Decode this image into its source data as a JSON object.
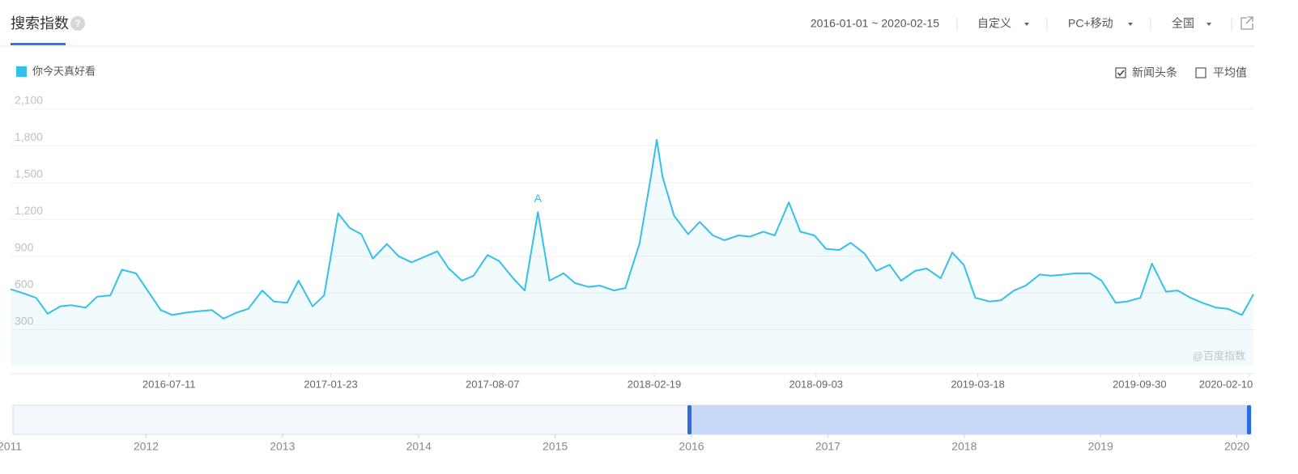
{
  "header": {
    "title": "搜索指数",
    "help": "?",
    "date_range": "2016-01-01 ~ 2020-02-15",
    "dropdowns": [
      "自定义",
      "PC+移动",
      "全国"
    ]
  },
  "options": [
    {
      "label": "新闻头条",
      "checked": true
    },
    {
      "label": "平均值",
      "checked": false
    }
  ],
  "watermark": "@百度指数",
  "navigator": {
    "years": [
      "2011",
      "2012",
      "2013",
      "2014",
      "2015",
      "2016",
      "2017",
      "2018",
      "2019",
      "2020"
    ]
  },
  "chart_data": {
    "type": "area",
    "series": [
      {
        "name": "你今天真好看",
        "color": "#35c0e8",
        "values": [
          630,
          600,
          560,
          430,
          490,
          500,
          480,
          570,
          580,
          790,
          760,
          620,
          460,
          420,
          440,
          450,
          460,
          390,
          440,
          470,
          620,
          530,
          520,
          700,
          490,
          580,
          1250,
          1130,
          1080,
          880,
          1000,
          900,
          850,
          890,
          940,
          800,
          700,
          740,
          910,
          860,
          720,
          620,
          1260,
          700,
          760,
          680,
          650,
          660,
          620,
          640,
          1000,
          1550,
          1850,
          1550,
          1230,
          1080,
          1180,
          1070,
          1030,
          1070,
          1060,
          1100,
          1070,
          1340,
          1100,
          1070,
          960,
          950,
          1010,
          920,
          780,
          830,
          700,
          780,
          800,
          720,
          930,
          830,
          560,
          530,
          540,
          620,
          660,
          750,
          740,
          750,
          760,
          760,
          700,
          520,
          530,
          560,
          840,
          610,
          620,
          560,
          520,
          480,
          470,
          420,
          590
        ]
      }
    ],
    "x": [
      "2016-01-01",
      "2016-01-15",
      "2016-02-01",
      "2016-02-15",
      "2016-03-01",
      "2016-03-15",
      "2016-04-01",
      "2016-04-15",
      "2016-05-01",
      "2016-05-15",
      "2016-06-01",
      "2016-06-15",
      "2016-07-01",
      "2016-07-15",
      "2016-08-01",
      "2016-08-15",
      "2016-09-01",
      "2016-09-15",
      "2016-10-01",
      "2016-10-15",
      "2016-11-01",
      "2016-11-15",
      "2016-12-01",
      "2016-12-15",
      "2017-01-01",
      "2017-01-15",
      "2017-02-01",
      "2017-02-15",
      "2017-03-01",
      "2017-03-15",
      "2017-04-01",
      "2017-04-15",
      "2017-05-01",
      "2017-05-15",
      "2017-06-01",
      "2017-06-15",
      "2017-07-01",
      "2017-07-15",
      "2017-08-01",
      "2017-08-15",
      "2017-09-01",
      "2017-09-15",
      "2017-10-01",
      "2017-10-15",
      "2017-11-01",
      "2017-11-15",
      "2017-12-01",
      "2017-12-15",
      "2018-01-01",
      "2018-01-15",
      "2018-02-01",
      "2018-02-15",
      "2018-02-22",
      "2018-03-01",
      "2018-03-15",
      "2018-04-01",
      "2018-04-15",
      "2018-05-01",
      "2018-05-15",
      "2018-06-01",
      "2018-06-15",
      "2018-07-01",
      "2018-07-15",
      "2018-08-01",
      "2018-08-15",
      "2018-09-01",
      "2018-09-15",
      "2018-10-01",
      "2018-10-15",
      "2018-11-01",
      "2018-11-15",
      "2018-12-01",
      "2018-12-15",
      "2019-01-01",
      "2019-01-15",
      "2019-02-01",
      "2019-02-15",
      "2019-03-01",
      "2019-03-15",
      "2019-04-01",
      "2019-04-15",
      "2019-05-01",
      "2019-05-15",
      "2019-06-01",
      "2019-06-15",
      "2019-07-01",
      "2019-07-15",
      "2019-08-01",
      "2019-08-15",
      "2019-09-01",
      "2019-09-15",
      "2019-10-01",
      "2019-10-15",
      "2019-11-01",
      "2019-11-15",
      "2019-12-01",
      "2019-12-15",
      "2020-01-01",
      "2020-01-15",
      "2020-02-01",
      "2020-02-15"
    ],
    "xlim": [
      "2016-01-01",
      "2020-02-15"
    ],
    "xticks": [
      "2016-07-11",
      "2017-01-23",
      "2017-08-07",
      "2018-02-19",
      "2018-09-03",
      "2019-03-18",
      "2019-09-30",
      "2020-02-10"
    ],
    "ylim": [
      0,
      2100
    ],
    "yticks": [
      {
        "value": 300,
        "label": "300"
      },
      {
        "value": 600,
        "label": "600"
      },
      {
        "value": 900,
        "label": "900"
      },
      {
        "value": 1200,
        "label": "1,200"
      },
      {
        "value": 1500,
        "label": "1,500"
      },
      {
        "value": 1800,
        "label": "1,800"
      },
      {
        "value": 2100,
        "label": "2,100"
      }
    ],
    "grid": true,
    "annotations": [
      {
        "text": "A",
        "x": "2017-10-01"
      }
    ]
  }
}
